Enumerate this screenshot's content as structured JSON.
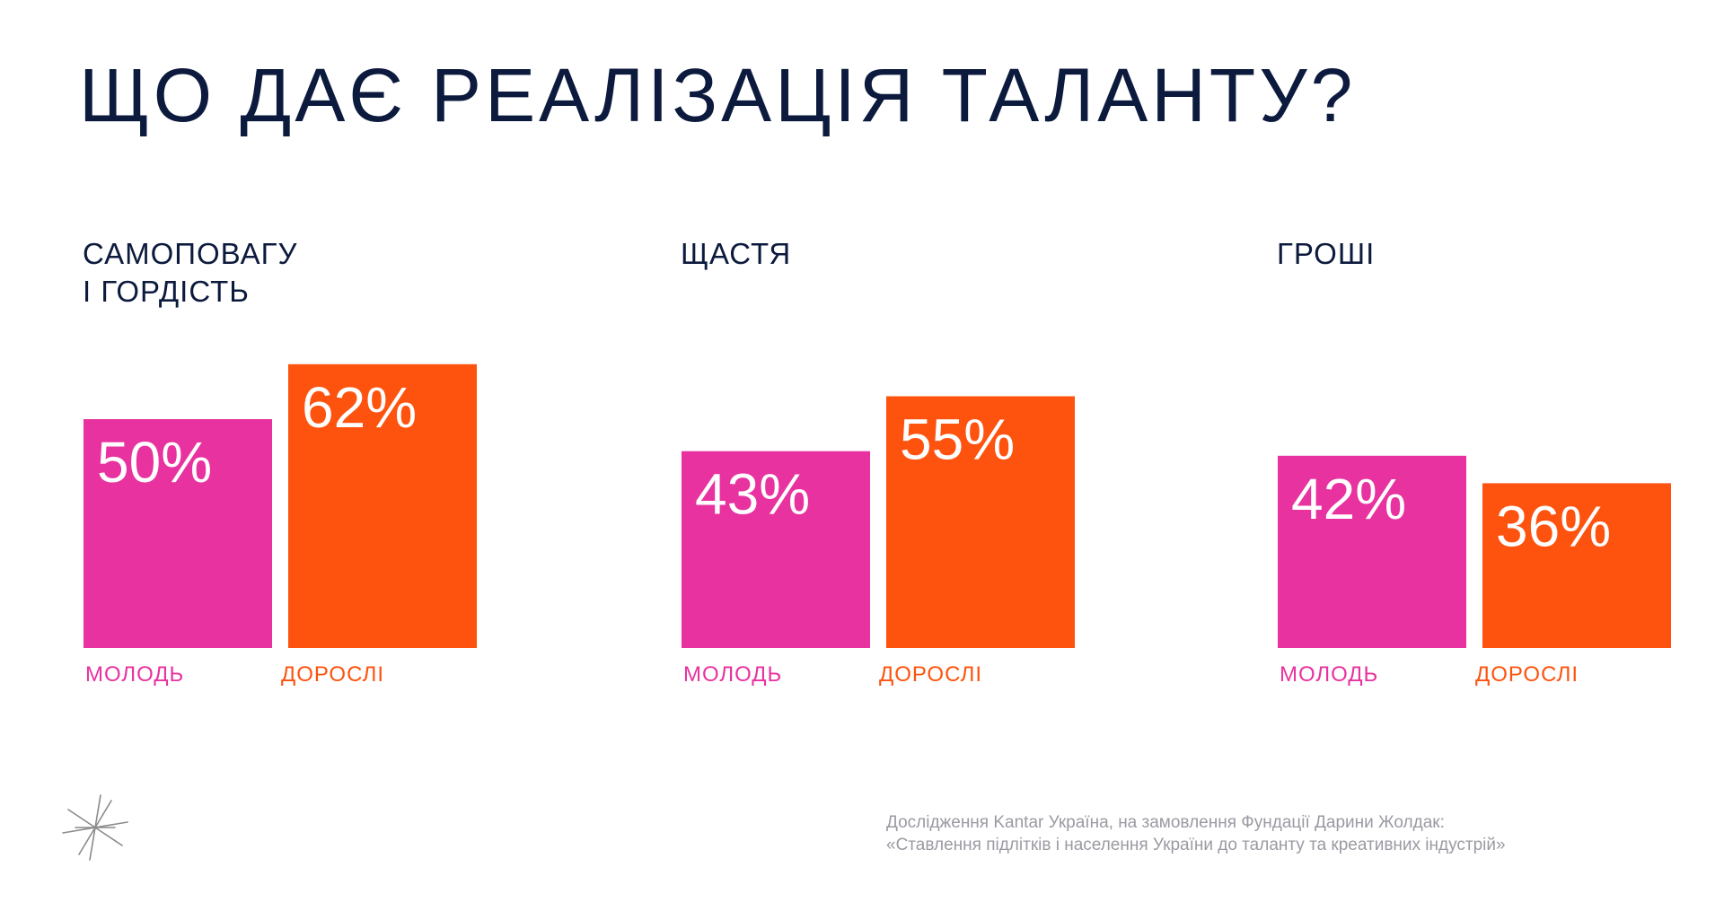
{
  "title": "ЩО ДАЄ РЕАЛІЗАЦІЯ ТАЛАНТУ?",
  "colors": {
    "youth": "#e8329f",
    "adults": "#fd530e",
    "text": "#0c1a3d",
    "source": "#9a9aa3",
    "background": "#ffffff"
  },
  "chart_data": [
    {
      "type": "bar",
      "title": "САМОПОВАГУ\nІ ГОРДІСТЬ",
      "categories": [
        "МОЛОДЬ",
        "ДОРОСЛІ"
      ],
      "values": [
        50,
        62
      ],
      "value_labels": [
        "50%",
        "62%"
      ],
      "ylim": [
        0,
        100
      ],
      "grid": false
    },
    {
      "type": "bar",
      "title": "ЩАСТЯ",
      "categories": [
        "МОЛОДЬ",
        "ДОРОСЛІ"
      ],
      "values": [
        43,
        55
      ],
      "value_labels": [
        "43%",
        "55%"
      ],
      "ylim": [
        0,
        100
      ],
      "grid": false
    },
    {
      "type": "bar",
      "title": "ГРОШІ",
      "categories": [
        "МОЛОДЬ",
        "ДОРОСЛІ"
      ],
      "values": [
        42,
        36
      ],
      "value_labels": [
        "42%",
        "36%"
      ],
      "ylim": [
        0,
        100
      ],
      "grid": false
    }
  ],
  "source": {
    "line1": "Дослідження Kantar Україна, на замовлення Фундації Дарини Жолдак:",
    "line2": "«Ставлення підлітків і населення України до таланту та креативних індустрій»"
  },
  "logo": {
    "icon": "asterisk-star-icon"
  }
}
